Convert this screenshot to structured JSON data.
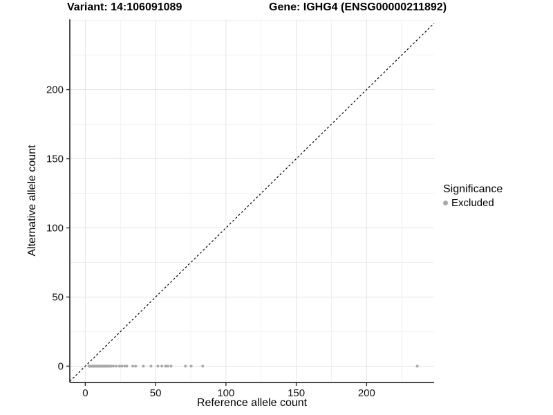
{
  "titles": {
    "variant": "Variant: 14:106091089",
    "gene": "Gene: IGHG4 (ENSG00000211892)"
  },
  "legend": {
    "title": "Significance",
    "items": [
      {
        "label": "Excluded",
        "color": "#a8a8a8"
      }
    ]
  },
  "chart_data": {
    "type": "scatter",
    "title": "Variant: 14:106091089 / Gene: IGHG4 (ENSG00000211892)",
    "xlabel": "Reference allele count",
    "ylabel": "Alternative allele count",
    "xlim": [
      -11,
      248
    ],
    "ylim": [
      -11.8,
      250.8
    ],
    "x_ticks": [
      0,
      50,
      100,
      150,
      200
    ],
    "x_tick_labels": [
      "0",
      "50",
      "100",
      "150",
      "200"
    ],
    "y_ticks": [
      0,
      50,
      100,
      150,
      200
    ],
    "y_tick_labels": [
      "0",
      "50",
      "100",
      "150",
      "200"
    ],
    "x_minor_ticks": [
      25,
      75,
      125,
      175,
      225
    ],
    "y_minor_ticks": [
      25,
      75,
      125,
      175,
      225,
      250
    ],
    "grid": true,
    "legend_position": "right",
    "identity_line": {
      "equation": "y = x",
      "style": "dashed",
      "color": "#000000"
    },
    "series": [
      {
        "name": "Excluded",
        "color": "#a8a8a8",
        "points": [
          [
            2.6,
            0
          ],
          [
            3,
            0
          ],
          [
            3.5,
            0
          ],
          [
            4,
            0
          ],
          [
            4.4,
            0
          ],
          [
            4.9,
            0
          ],
          [
            5.3,
            0
          ],
          [
            5.8,
            0
          ],
          [
            6.2,
            0
          ],
          [
            6.7,
            0
          ],
          [
            7.1,
            0
          ],
          [
            7.6,
            0
          ],
          [
            8,
            0
          ],
          [
            8.5,
            0
          ],
          [
            9,
            0
          ],
          [
            9.4,
            0
          ],
          [
            9.9,
            0
          ],
          [
            10.3,
            0
          ],
          [
            10.8,
            0
          ],
          [
            11.2,
            0
          ],
          [
            11.7,
            0
          ],
          [
            12.1,
            0
          ],
          [
            12.6,
            0
          ],
          [
            13,
            0
          ],
          [
            13.5,
            0
          ],
          [
            14,
            0
          ],
          [
            14.5,
            0
          ],
          [
            15,
            0
          ],
          [
            15.5,
            0
          ],
          [
            16,
            0
          ],
          [
            16.8,
            0
          ],
          [
            17.6,
            0
          ],
          [
            18.5,
            0
          ],
          [
            20,
            0
          ],
          [
            22,
            0
          ],
          [
            24.3,
            0
          ],
          [
            26,
            0
          ],
          [
            28,
            0
          ],
          [
            29.5,
            0
          ],
          [
            33.8,
            0
          ],
          [
            35.8,
            0
          ],
          [
            41.3,
            0
          ],
          [
            46.7,
            0
          ],
          [
            51.6,
            0
          ],
          [
            54.4,
            0
          ],
          [
            57,
            0
          ],
          [
            58.7,
            0
          ],
          [
            61,
            0
          ],
          [
            71.2,
            0
          ],
          [
            75.3,
            0
          ],
          [
            83.5,
            0
          ],
          [
            236,
            0
          ]
        ]
      }
    ],
    "colors": {
      "point": "#a8a8a8",
      "grid_major": "#e4e4e4",
      "grid_minor": "#f1f1f1",
      "axis_line": "#2f2f2f",
      "dashed_line": "#000000"
    }
  }
}
